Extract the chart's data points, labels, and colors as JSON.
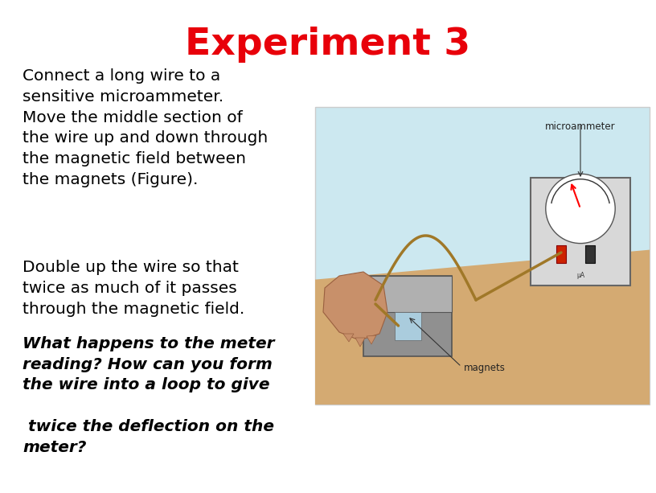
{
  "title": "Experiment 3",
  "title_color": "#e8000a",
  "title_fontsize": 34,
  "background_color": "#ffffff",
  "paragraph1": "Connect a long wire to a\nsensitive microammeter.\nMove the middle section of\nthe wire up and down through\nthe magnetic field between\nthe magnets (Figure).",
  "paragraph2": "Double up the wire so that\ntwice as much of it passes\nthrough the magnetic field.",
  "paragraph3": "What happens to the meter\nreading? How can you form\nthe wire into a loop to give",
  "paragraph4": " twice the deflection on the\nmeter?",
  "text_color": "#000000",
  "text_fontsize": 14.5,
  "img_label_microammeter": "microammeter",
  "img_label_magnets": "magnets",
  "img_bg_color": "#cce8f0",
  "img_table_color": "#d4aa72",
  "img_meter_body_color": "#e8e8e8",
  "img_meter_border_color": "#888888",
  "img_magnet_color": "#888888",
  "img_wire_color": "#a07828",
  "img_hand_color": "#c8906a"
}
